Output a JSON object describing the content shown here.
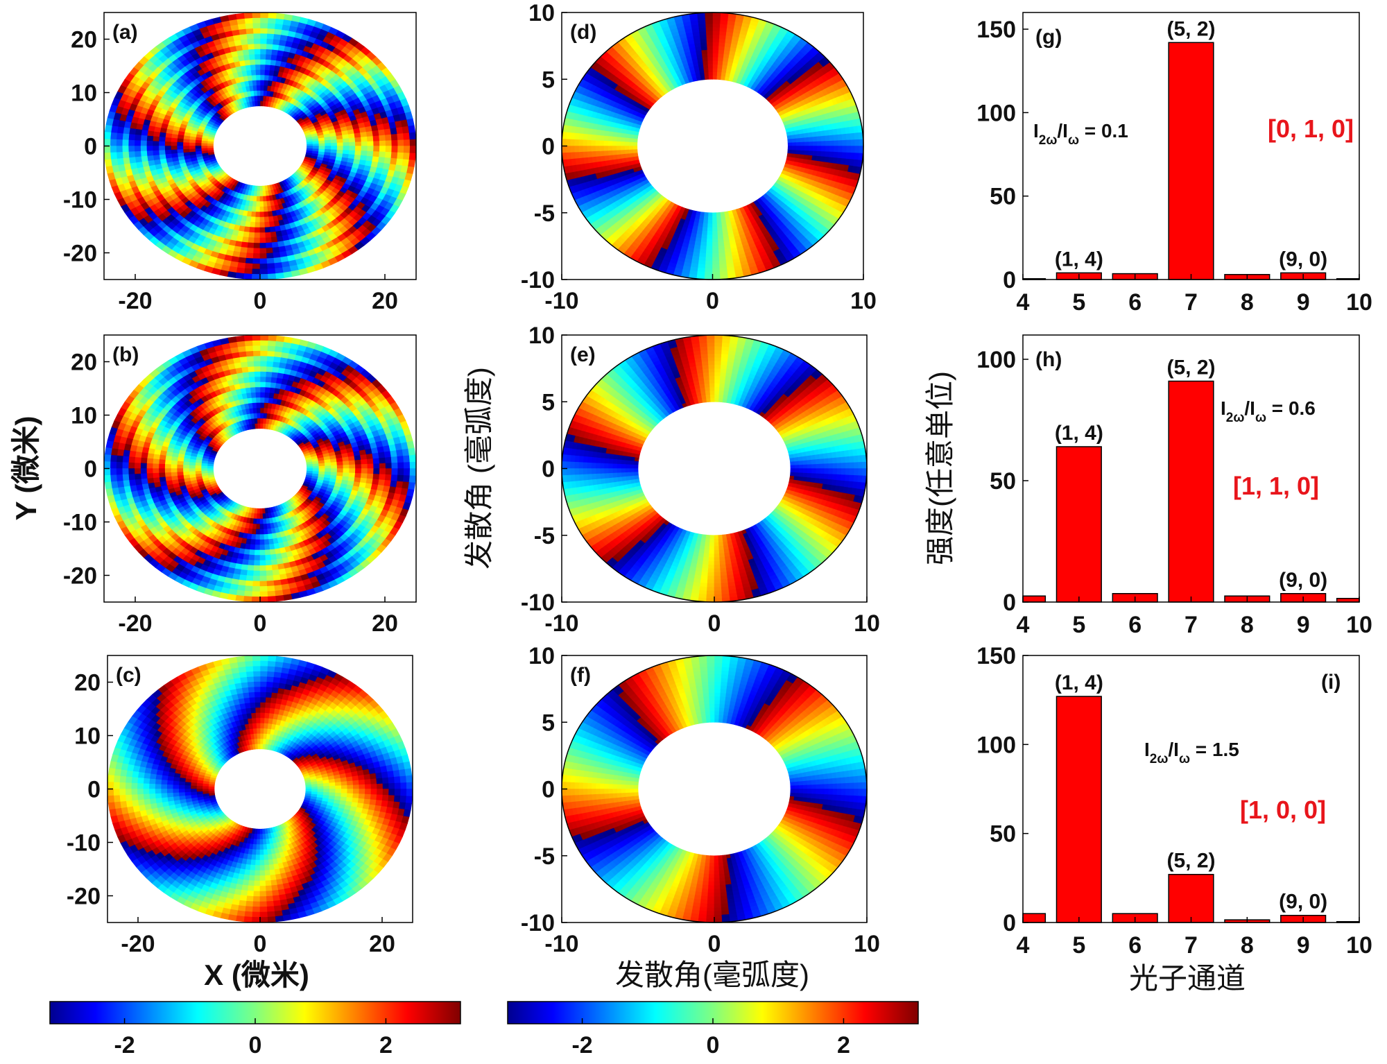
{
  "colors": {
    "bar_fill": "#ff0000",
    "bar_stroke": "#000000",
    "vector_text": "#e8151b",
    "axis": "#000000"
  },
  "colormap": "jet",
  "chart_data": [
    {
      "type": "heatmap",
      "id": "a",
      "panel_label": "(a)",
      "description_field": "annular phase map",
      "xlim": [
        -25,
        25
      ],
      "ylim": [
        -25,
        25
      ],
      "x_ticks": [
        "-20",
        "0",
        "20"
      ],
      "y_ticks": [
        "20",
        "10",
        "0",
        "-10",
        "-20"
      ],
      "inner_radius": 7.5,
      "outer_radius": 25,
      "winding": 7,
      "twist": 0.06,
      "rings": true
    },
    {
      "type": "heatmap",
      "id": "b",
      "panel_label": "(b)",
      "xlim": [
        -25,
        25
      ],
      "ylim": [
        -25,
        25
      ],
      "x_ticks": [
        "-20",
        "0",
        "20"
      ],
      "y_ticks": [
        "20",
        "10",
        "0",
        "-10",
        "-20"
      ],
      "inner_radius": 7.5,
      "outer_radius": 25,
      "winding": 6,
      "twist": 0.1,
      "rings": true
    },
    {
      "type": "heatmap",
      "id": "c",
      "panel_label": "(c)",
      "xlim": [
        -25,
        25
      ],
      "ylim": [
        -25,
        25
      ],
      "x_ticks": [
        "-20",
        "0",
        "20"
      ],
      "y_ticks": [
        "20",
        "10",
        "0",
        "-10",
        "-20"
      ],
      "inner_radius": 7.5,
      "outer_radius": 25,
      "winding": 5,
      "twist": 0.12,
      "rings": false
    },
    {
      "type": "heatmap",
      "id": "d",
      "panel_label": "(d)",
      "xlim": [
        -10,
        10
      ],
      "ylim": [
        -10,
        10
      ],
      "x_ticks": [
        "-10",
        "0",
        "10"
      ],
      "y_ticks": [
        "10",
        "5",
        "0",
        "-5",
        "-10"
      ],
      "inner_radius": 5,
      "outer_radius": 10,
      "winding": 7,
      "twist": 0.04,
      "rings": false
    },
    {
      "type": "heatmap",
      "id": "e",
      "panel_label": "(e)",
      "xlim": [
        -10,
        10
      ],
      "ylim": [
        -10,
        10
      ],
      "x_ticks": [
        "-10",
        "0",
        "10"
      ],
      "y_ticks": [
        "10",
        "5",
        "0",
        "-5",
        "-10"
      ],
      "inner_radius": 5,
      "outer_radius": 10,
      "winding": 6,
      "twist": 0.05,
      "rings": false
    },
    {
      "type": "heatmap",
      "id": "f",
      "panel_label": "(f)",
      "xlim": [
        -10,
        10
      ],
      "ylim": [
        -10,
        10
      ],
      "x_ticks": [
        "-10",
        "0",
        "10"
      ],
      "y_ticks": [
        "10",
        "5",
        "0",
        "-5",
        "-10"
      ],
      "inner_radius": 5,
      "outer_radius": 10,
      "winding": 5,
      "twist": 0.05,
      "rings": false
    },
    {
      "type": "bar",
      "id": "g",
      "panel_label": "(g)",
      "categories": [
        "4",
        "5",
        "6",
        "7",
        "8",
        "9",
        "10"
      ],
      "values": [
        0.5,
        4,
        3.5,
        142,
        3,
        4,
        0.5
      ],
      "ylim": [
        0,
        160
      ],
      "y_ticks": [
        "150",
        "100",
        "50",
        "0"
      ],
      "ratio_label": {
        "I": "I",
        "sub1": "2ω",
        "slash": "/I",
        "sub2": "ω",
        "value": " = 0.1"
      },
      "state_vector": "[0, 1, 0]",
      "bar_labels": [
        {
          "category": "5",
          "text": "(1, 4)"
        },
        {
          "category": "7",
          "text": "(5, 2)"
        },
        {
          "category": "9",
          "text": "(9, 0)"
        }
      ]
    },
    {
      "type": "bar",
      "id": "h",
      "panel_label": "(h)",
      "categories": [
        "4",
        "5",
        "6",
        "7",
        "8",
        "9",
        "10"
      ],
      "values": [
        2.5,
        64,
        3.5,
        91,
        2.5,
        3.5,
        1.5
      ],
      "ylim": [
        0,
        110
      ],
      "y_ticks": [
        "100",
        "50",
        "0"
      ],
      "ratio_label": {
        "I": "I",
        "sub1": "2ω",
        "slash": "/I",
        "sub2": "ω",
        "value": " = 0.6"
      },
      "state_vector": "[1, 1, 0]",
      "bar_labels": [
        {
          "category": "5",
          "text": "(1, 4)"
        },
        {
          "category": "7",
          "text": "(5, 2)"
        },
        {
          "category": "9",
          "text": "(9, 0)"
        }
      ]
    },
    {
      "type": "bar",
      "id": "i",
      "panel_label": "(i)",
      "categories": [
        "4",
        "5",
        "6",
        "7",
        "8",
        "9",
        "10"
      ],
      "values": [
        5,
        127,
        5,
        27,
        1.5,
        4,
        0.5
      ],
      "ylim": [
        0,
        150
      ],
      "y_ticks": [
        "150",
        "100",
        "50",
        "0"
      ],
      "ratio_label": {
        "I": "I",
        "sub1": "2ω",
        "slash": "/I",
        "sub2": "ω",
        "value": " = 1.5"
      },
      "state_vector": "[1, 0, 0]",
      "bar_labels": [
        {
          "category": "5",
          "text": "(1, 4)"
        },
        {
          "category": "7",
          "text": "(5, 2)"
        },
        {
          "category": "9",
          "text": "(9, 0)"
        }
      ]
    }
  ],
  "labels": {
    "ylabel_left": "Y (微米)",
    "xlabel_left": "X (微米)",
    "ylabel_mid": "发散角 (毫弧度)",
    "xlabel_mid": "发散角(毫弧度)",
    "ylabel_right": "强度(任意单位)",
    "xlabel_right": "光子通道"
  },
  "colorbars": [
    {
      "id": "cb1",
      "ticks": [
        "-2",
        "0",
        "2"
      ],
      "range": [
        -3.1416,
        3.1416
      ]
    },
    {
      "id": "cb2",
      "ticks": [
        "-2",
        "0",
        "2"
      ],
      "range": [
        -3.1416,
        3.1416
      ]
    }
  ]
}
